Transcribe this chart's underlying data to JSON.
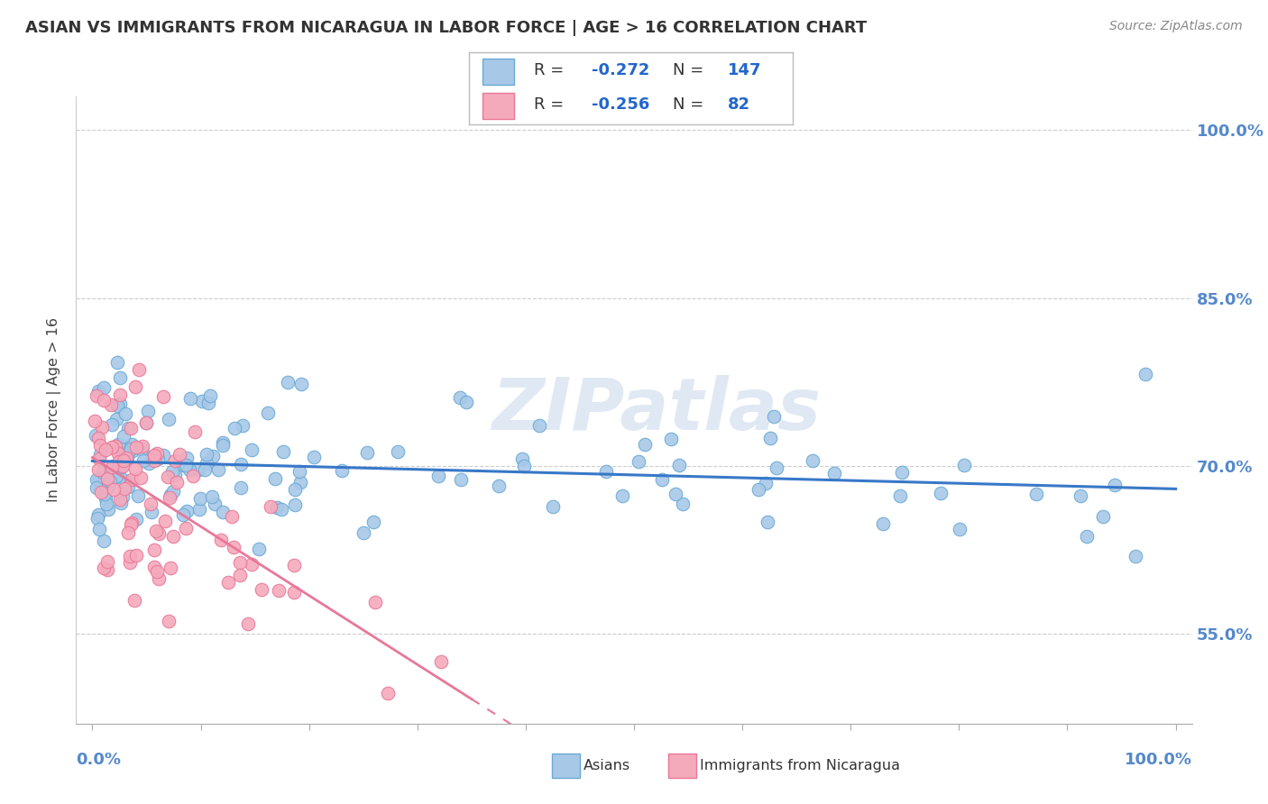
{
  "title": "ASIAN VS IMMIGRANTS FROM NICARAGUA IN LABOR FORCE | AGE > 16 CORRELATION CHART",
  "source": "Source: ZipAtlas.com",
  "ylabel": "In Labor Force | Age > 16",
  "xlim": [
    0,
    100
  ],
  "ylim": [
    47,
    103
  ],
  "yticks": [
    55.0,
    70.0,
    85.0,
    100.0
  ],
  "ytick_labels": [
    "55.0%",
    "70.0%",
    "85.0%",
    "100.0%"
  ],
  "legend_line1": "R =  -0.272   N = 147",
  "legend_line2": "R =  -0.256   N =   82",
  "asian_color": "#a8c8e8",
  "asian_edge": "#6aaad4",
  "nic_color": "#f5aabc",
  "nic_edge": "#e87898",
  "trend_asian_color": "#3878c8",
  "trend_nic_color": "#e87898",
  "watermark": "ZIPatlas",
  "background_color": "#ffffff",
  "grid_color": "#cccccc",
  "title_color": "#333333",
  "source_color": "#888888",
  "ytick_color": "#5588cc",
  "xtick_color": "#5588cc",
  "legend_text_color": "#1a4080",
  "legend_number_color": "#2266cc"
}
